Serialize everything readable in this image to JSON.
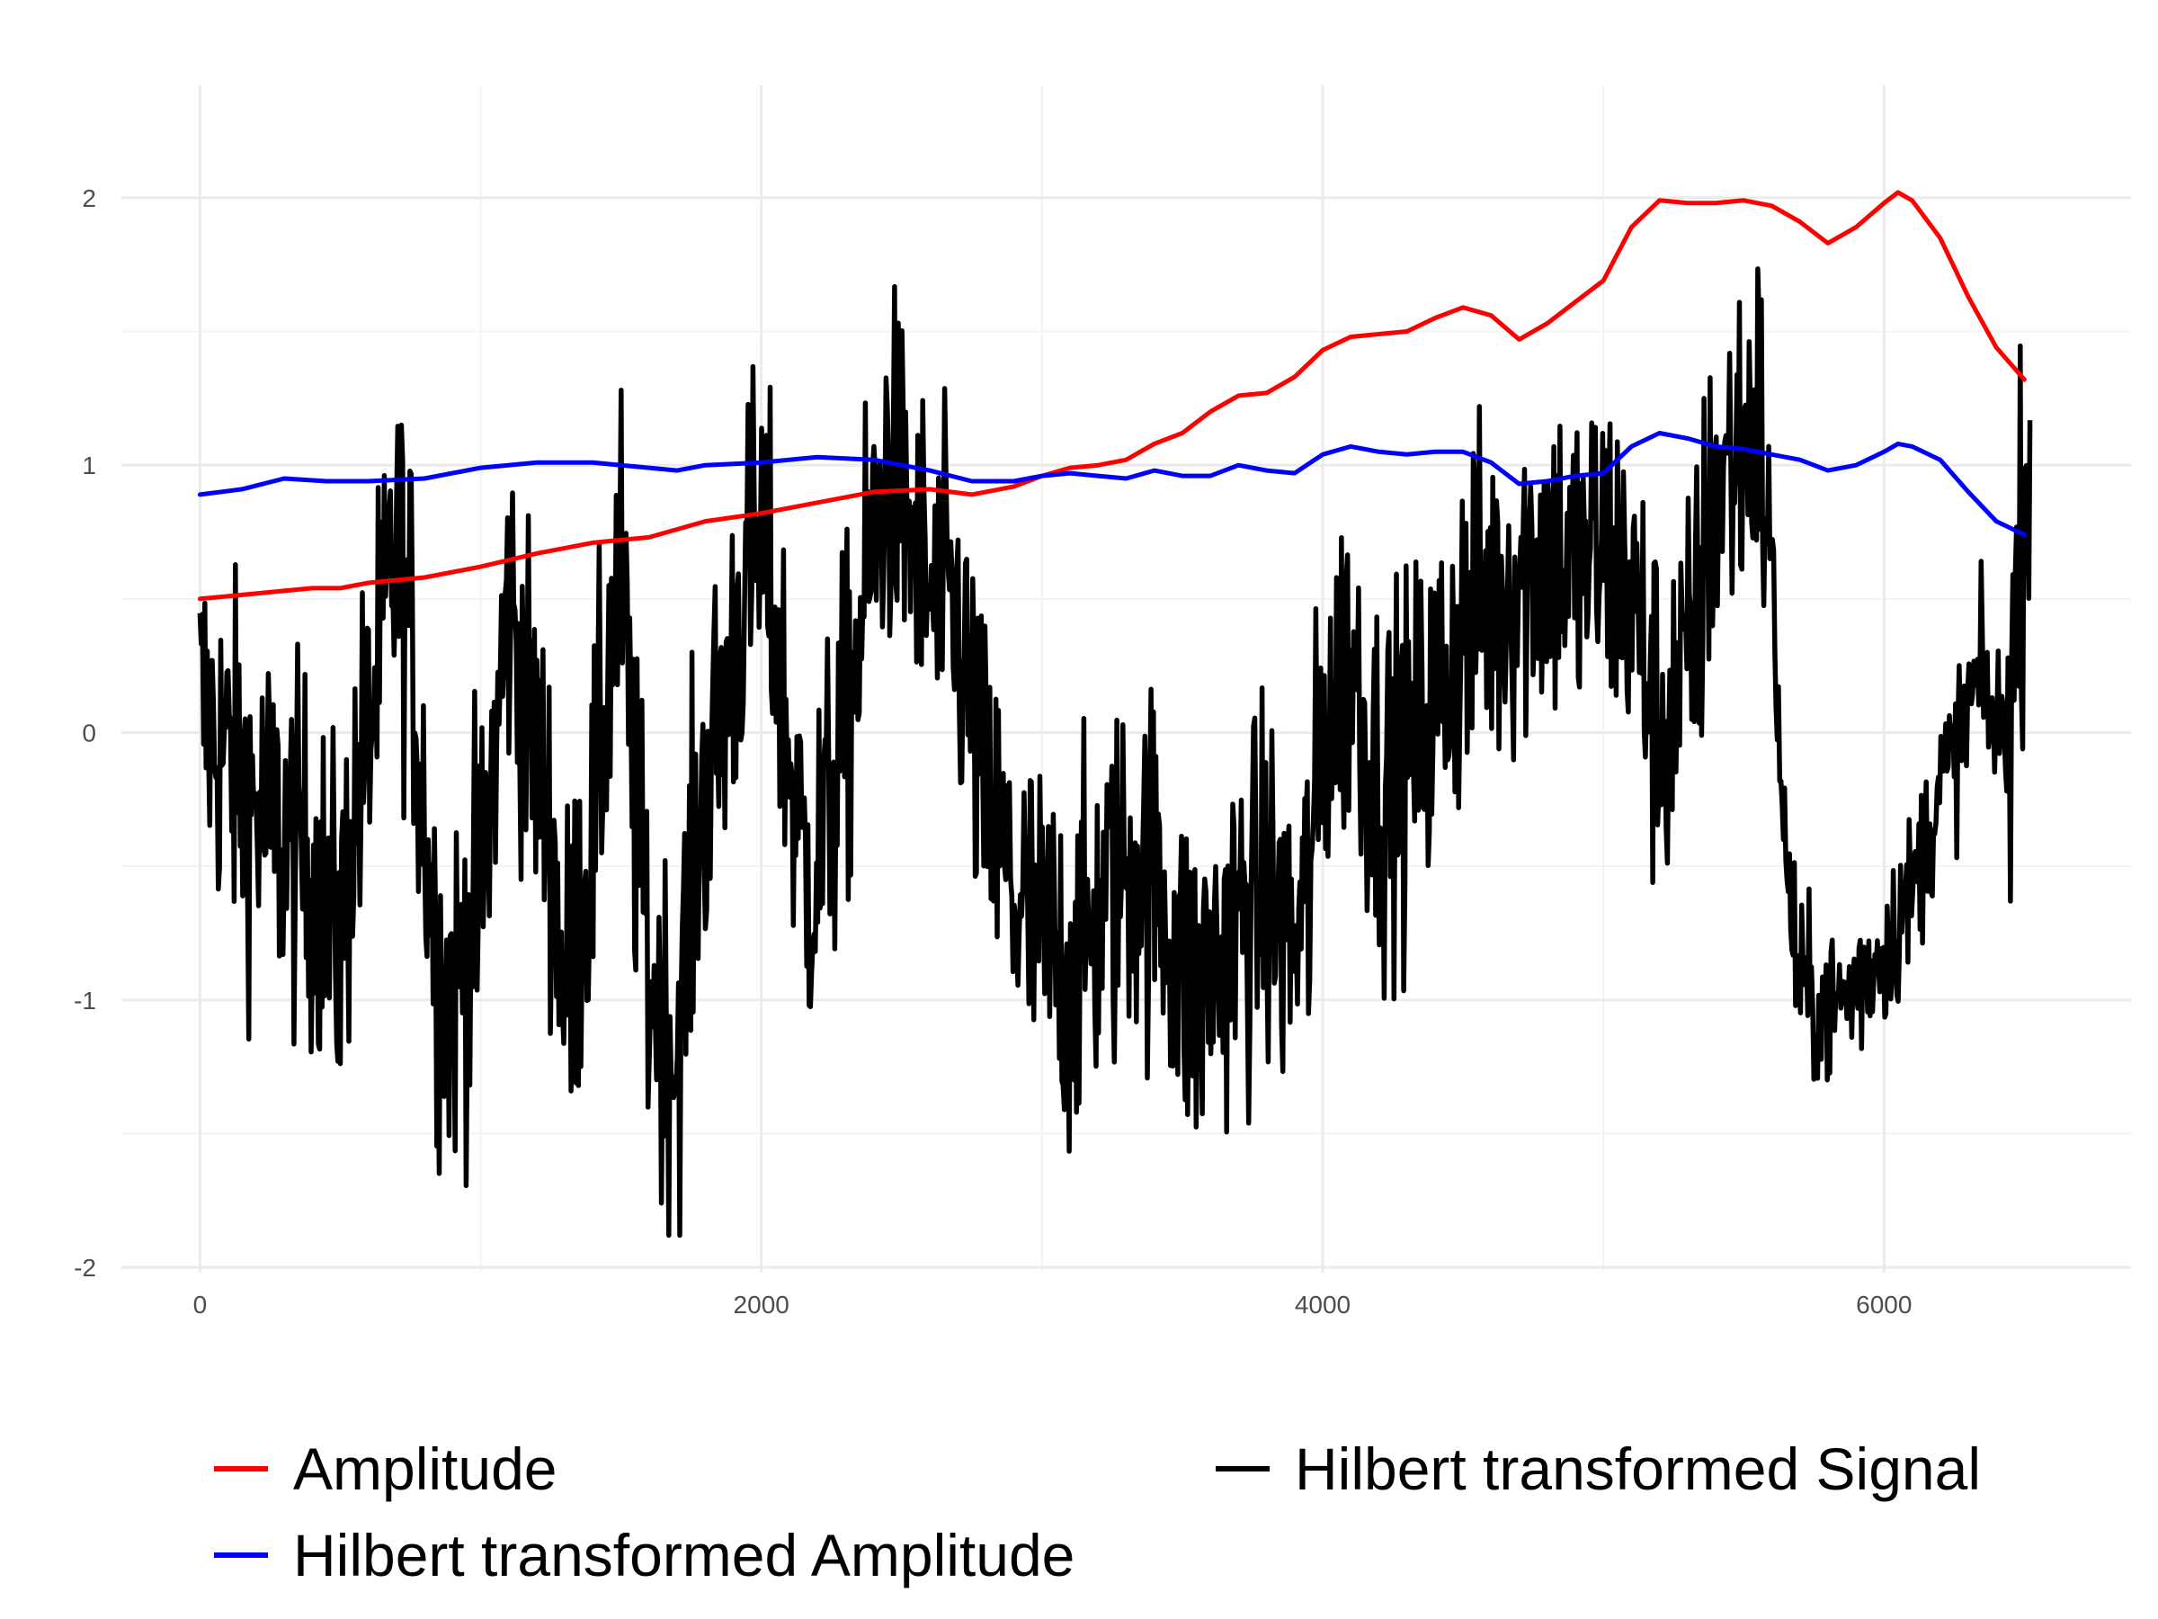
{
  "chart_data": {
    "type": "line",
    "title": "",
    "xlabel": "",
    "ylabel": "",
    "xlim": [
      -280,
      6880
    ],
    "ylim": [
      -2.02,
      2.42
    ],
    "x_ticks": [
      0,
      2000,
      4000,
      6000
    ],
    "x_tick_labels": [
      "0",
      "2000",
      "4000",
      "6000"
    ],
    "y_ticks": [
      -2,
      -1,
      0,
      1,
      2
    ],
    "y_tick_labels": [
      "-2",
      "-1",
      "0",
      "1",
      "2"
    ],
    "grid": true,
    "legend_position": "bottom",
    "series": [
      {
        "name": "Amplitude",
        "color": "#FF0000",
        "x": [
          0,
          200,
          400,
          500,
          600,
          800,
          1000,
          1200,
          1400,
          1600,
          1800,
          2000,
          2200,
          2400,
          2600,
          2750,
          2900,
          3000,
          3100,
          3200,
          3300,
          3400,
          3500,
          3600,
          3700,
          3800,
          3900,
          4000,
          4100,
          4200,
          4300,
          4400,
          4500,
          4600,
          4700,
          4800,
          4900,
          5000,
          5100,
          5200,
          5300,
          5400,
          5500,
          5600,
          5700,
          5800,
          5900,
          6000,
          6050,
          6100,
          6200,
          6300,
          6400,
          6500
        ],
        "y": [
          0.5,
          0.52,
          0.54,
          0.54,
          0.56,
          0.58,
          0.62,
          0.67,
          0.71,
          0.73,
          0.79,
          0.82,
          0.86,
          0.9,
          0.91,
          0.89,
          0.92,
          0.96,
          0.99,
          1.0,
          1.02,
          1.08,
          1.12,
          1.2,
          1.26,
          1.27,
          1.33,
          1.43,
          1.48,
          1.49,
          1.5,
          1.55,
          1.59,
          1.56,
          1.47,
          1.53,
          1.61,
          1.69,
          1.89,
          1.99,
          1.98,
          1.98,
          1.99,
          1.97,
          1.91,
          1.83,
          1.89,
          1.98,
          2.02,
          1.99,
          1.85,
          1.63,
          1.44,
          1.32
        ]
      },
      {
        "name": "Hilbert transformed Amplitude",
        "color": "#0000FF",
        "x": [
          0,
          150,
          300,
          450,
          600,
          800,
          1000,
          1200,
          1400,
          1500,
          1600,
          1700,
          1800,
          2000,
          2200,
          2400,
          2600,
          2750,
          2900,
          3000,
          3100,
          3200,
          3300,
          3400,
          3500,
          3600,
          3700,
          3800,
          3900,
          4000,
          4100,
          4200,
          4300,
          4400,
          4500,
          4600,
          4700,
          4800,
          4900,
          5000,
          5100,
          5200,
          5300,
          5400,
          5500,
          5600,
          5700,
          5800,
          5900,
          6000,
          6050,
          6100,
          6200,
          6300,
          6400,
          6500
        ],
        "y": [
          0.89,
          0.91,
          0.95,
          0.94,
          0.94,
          0.95,
          0.99,
          1.01,
          1.01,
          1.0,
          0.99,
          0.98,
          1.0,
          1.01,
          1.03,
          1.02,
          0.98,
          0.94,
          0.94,
          0.96,
          0.97,
          0.96,
          0.95,
          0.98,
          0.96,
          0.96,
          1.0,
          0.98,
          0.97,
          1.04,
          1.07,
          1.05,
          1.04,
          1.05,
          1.05,
          1.01,
          0.93,
          0.94,
          0.96,
          0.97,
          1.07,
          1.12,
          1.1,
          1.07,
          1.06,
          1.04,
          1.02,
          0.98,
          1.0,
          1.05,
          1.08,
          1.07,
          1.02,
          0.9,
          0.79,
          0.74
        ]
      },
      {
        "name": "Hilbert transformed Signal",
        "color": "#000000",
        "x_range": [
          0,
          6520
        ],
        "points": 1500,
        "trend_x": [
          0,
          100,
          200,
          300,
          400,
          500,
          550,
          650,
          700,
          750,
          800,
          850,
          900,
          1000,
          1050,
          1100,
          1150,
          1250,
          1300,
          1400,
          1450,
          1500,
          1550,
          1600,
          1650,
          1700,
          1750,
          1800,
          1850,
          1900,
          1950,
          2000,
          2050,
          2100,
          2150,
          2200,
          2300,
          2400,
          2450,
          2500,
          2550,
          2600,
          2700,
          2800,
          2900,
          3000,
          3100,
          3200,
          3300,
          3400,
          3500,
          3550,
          3600,
          3700,
          3800,
          3900,
          3950,
          4000,
          4100,
          4200,
          4300,
          4400,
          4500,
          4600,
          4700,
          4800,
          4900,
          5000,
          5100,
          5200,
          5300,
          5400,
          5500,
          5550,
          5600,
          5650,
          5700,
          5750,
          5800,
          5900,
          6000,
          6100,
          6150,
          6200,
          6250,
          6300,
          6350,
          6400,
          6450,
          6480,
          6520
        ],
        "trend_y": [
          0.1,
          -0.1,
          -0.3,
          -0.4,
          -0.5,
          -0.8,
          -0.3,
          0.3,
          0.7,
          0.4,
          -0.3,
          -0.9,
          -1.0,
          -0.6,
          -0.1,
          0.5,
          0.2,
          -0.4,
          -1.0,
          -0.4,
          0.2,
          0.6,
          -0.3,
          -0.9,
          -1.1,
          -1.2,
          -0.6,
          -0.2,
          0.0,
          0.3,
          0.6,
          0.7,
          0.4,
          -0.1,
          -0.5,
          -0.5,
          0.0,
          0.7,
          1.0,
          0.9,
          0.7,
          0.5,
          0.4,
          -0.3,
          -0.6,
          -0.8,
          -0.9,
          -0.7,
          -0.5,
          -0.5,
          -0.9,
          -1.0,
          -0.9,
          -0.7,
          -0.6,
          -0.8,
          -0.6,
          0.0,
          0.3,
          -0.2,
          -0.1,
          0.1,
          0.4,
          0.5,
          0.6,
          0.7,
          0.6,
          0.7,
          0.5,
          0.0,
          0.2,
          0.9,
          1.1,
          1.2,
          0.6,
          -0.5,
          -0.95,
          -1.0,
          -1.05,
          -0.95,
          -0.8,
          -0.6,
          -0.4,
          -0.2,
          -0.1,
          0.1,
          0.2,
          0.0,
          0.1,
          0.6,
          1.2
        ],
        "noise_amplitude": 0.34,
        "amplitude_range": [
          -1.88,
          2.23
        ]
      }
    ],
    "legend": [
      {
        "label": "Amplitude",
        "color": "#FF0000"
      },
      {
        "label": "Hilbert transformed Amplitude",
        "color": "#0000FF"
      },
      {
        "label": "Hilbert transformed Signal",
        "color": "#000000"
      }
    ]
  }
}
